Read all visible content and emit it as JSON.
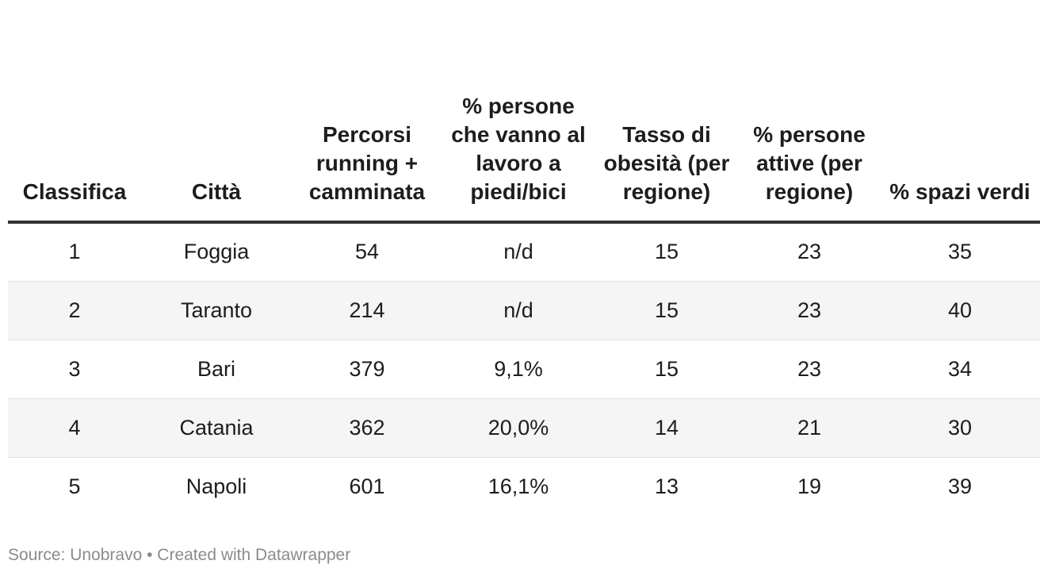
{
  "chart_data": {
    "type": "table",
    "columns": [
      "Classifica",
      "Città",
      "Percorsi running + camminata",
      "% persone che vanno al lavoro a piedi/bici",
      "Tasso di obesità (per regione)",
      "% persone attive (per regione)",
      "% spazi verdi"
    ],
    "rows": [
      [
        "1",
        "Foggia",
        "54",
        "n/d",
        "15",
        "23",
        "35"
      ],
      [
        "2",
        "Taranto",
        "214",
        "n/d",
        "15",
        "23",
        "40"
      ],
      [
        "3",
        "Bari",
        "379",
        "9,1%",
        "15",
        "23",
        "34"
      ],
      [
        "4",
        "Catania",
        "362",
        "20,0%",
        "14",
        "21",
        "30"
      ],
      [
        "5",
        "Napoli",
        "601",
        "16,1%",
        "13",
        "19",
        "39"
      ]
    ],
    "colors": {
      "text": "#1d1d1d",
      "header_rule": "#333333",
      "stripe": "#f5f5f5",
      "row_rule": "#e2e2e2",
      "footer": "#8b8b8b"
    }
  },
  "footer": {
    "source_text": "Source: Unobravo • Created with Datawrapper"
  }
}
